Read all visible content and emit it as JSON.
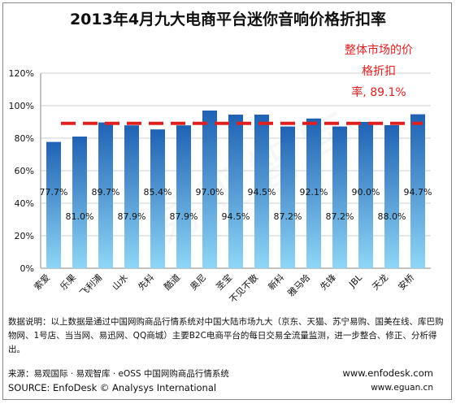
{
  "chart_data": {
    "type": "bar",
    "title": "2013年4月九大电商平台迷你音响价格折扣率",
    "categories": [
      "索爱",
      "乐果",
      "飞利浦",
      "山水",
      "先科",
      "酷道",
      "奥尼",
      "圣宝",
      "不见不散",
      "新科",
      "雅马哈",
      "先锋",
      "JBL",
      "天龙",
      "安桥"
    ],
    "values": [
      77.7,
      81.0,
      89.7,
      87.9,
      85.4,
      87.9,
      97.0,
      94.5,
      94.5,
      87.2,
      92.1,
      87.2,
      90.0,
      88.0,
      94.7
    ],
    "value_labels": [
      "77.7%",
      "81.0%",
      "89.7%",
      "87.9%",
      "85.4%",
      "87.9%",
      "97.0%",
      "94.5%",
      "94.5%",
      "87.2%",
      "92.1%",
      "87.2%",
      "90.0%",
      "88.0%",
      "94.7%"
    ],
    "y_ticks": [
      "0%",
      "20%",
      "40%",
      "60%",
      "80%",
      "100%",
      "120%"
    ],
    "ylim": [
      0,
      120
    ],
    "reference_line": 89.1,
    "reference_note": [
      "整体市场的价",
      "格折扣",
      "率, 89.1%"
    ],
    "grid": true,
    "legend": "none",
    "colors": {
      "bar_top": "#1f62b4",
      "bar_bottom": "#8fd6f5",
      "reference": "#e02020"
    }
  },
  "notes": "数据说明：以上数据是通过中国网购商品行情系统对中国大陆市场九大（京东、天猫、苏宁易购、国美在线、库巴购物网、1号店、当当网、易迅网、QQ商城）主要B2C电商平台的每日交易全流量监测，进一步整合、修正、分析得出。",
  "footer": {
    "source_cn": "来源：易观国际 · 易观智库 · eOSS 中国网购商品行情系统",
    "source_en": "SOURCE: EnfoDesk © Analysys International",
    "url1": "www.enfodesk.com",
    "url2": "www.eguan.cn"
  },
  "watermark": "易观智库"
}
